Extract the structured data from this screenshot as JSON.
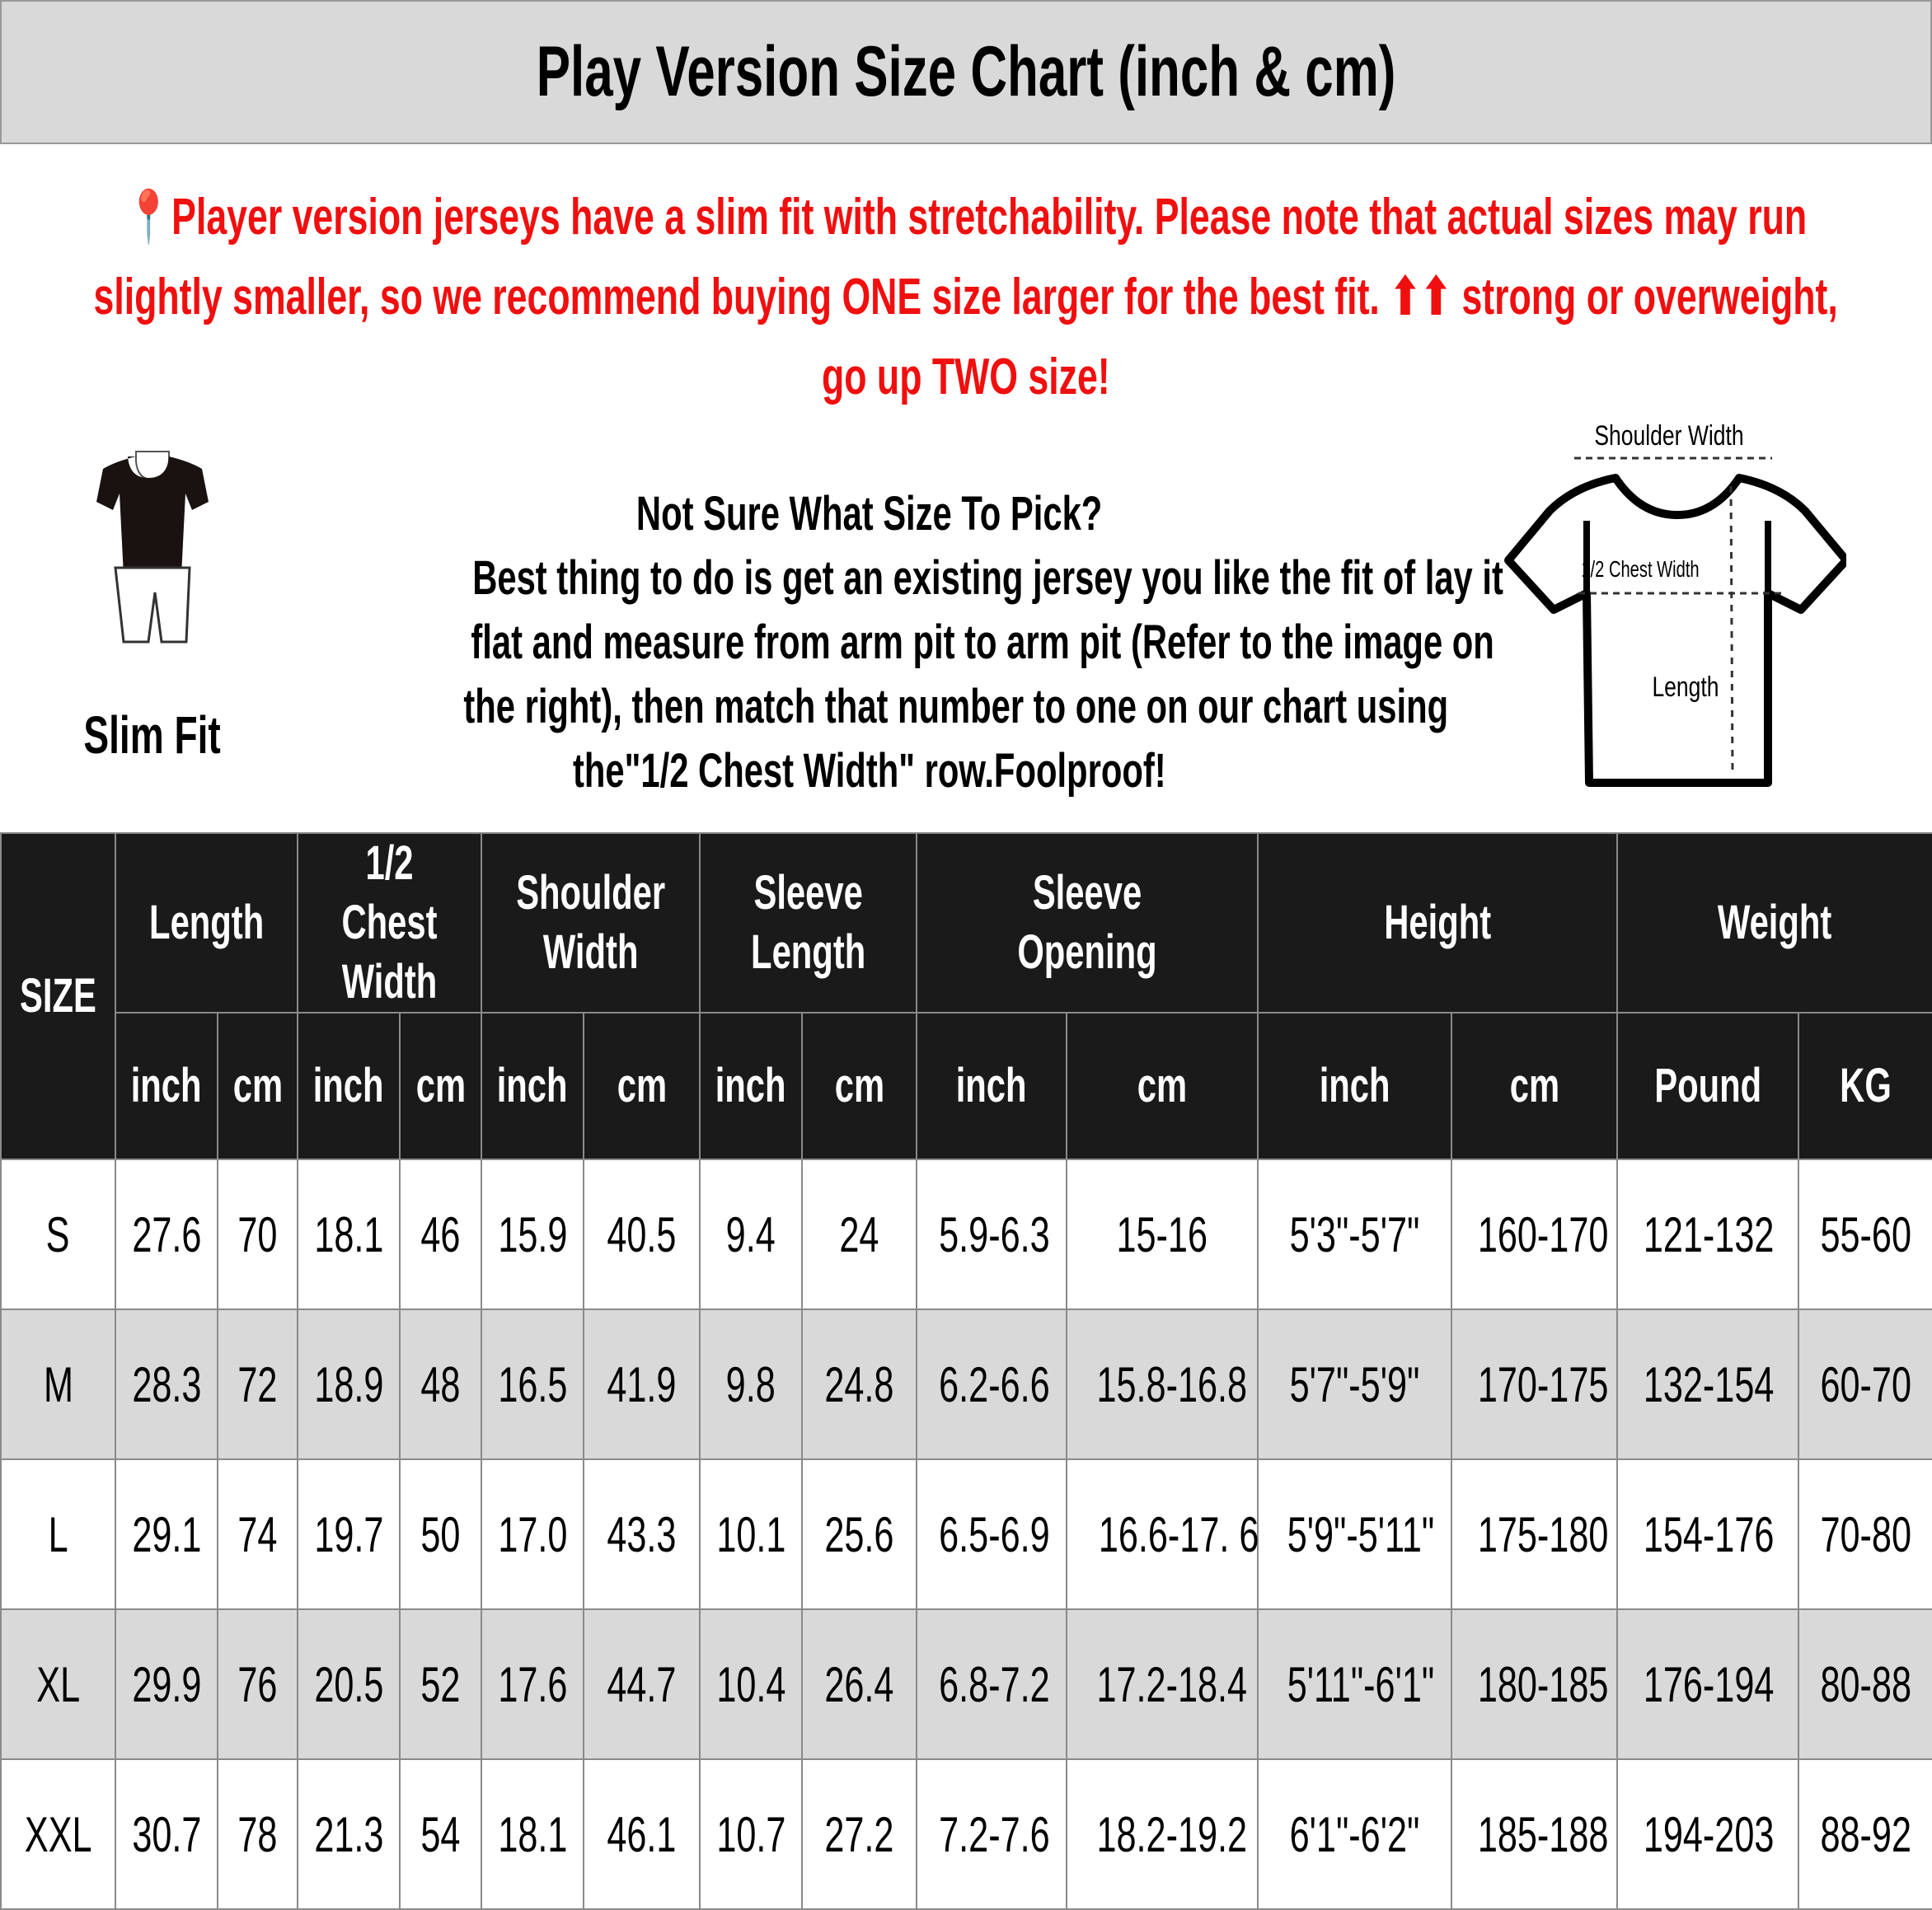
{
  "header": {
    "title": "Play Version Size Chart (inch & cm)"
  },
  "notice": {
    "icon": "pushpin-icon",
    "lines": [
      "📍Player version jerseys have a slim fit with stretchability. Please note that actual sizes may run",
      "slightly smaller, so we recommend buying ONE size larger for the best fit. ⬆⬆ strong or overweight,",
      "go up TWO size!"
    ],
    "color": "#f00f0f"
  },
  "fit": {
    "label": "Slim Fit",
    "icon": "slim-fit-mannequin-icon"
  },
  "advice": {
    "heading": "Not Sure What Size To Pick?",
    "lines": [
      "Best thing to do is get an existing jersey you like the fit of lay it",
      "flat and measure from arm pit to arm pit (Refer to the image on",
      "the right), then match that number to one on our chart using",
      "the\"1/2 Chest Width\" row.Foolproof!"
    ]
  },
  "diagram": {
    "icon": "tshirt-measurement-icon",
    "shoulder_label": "Shoulder Width",
    "chest_label": "1/2 Chest Width",
    "length_label": "Length"
  },
  "table": {
    "size_header": "SIZE",
    "groups": [
      {
        "label": "Length",
        "units": [
          "inch",
          "cm"
        ]
      },
      {
        "label": "1/2 Chest\nWidth",
        "units": [
          "inch",
          "cm"
        ]
      },
      {
        "label": "Shoulder\nWidth",
        "units": [
          "inch",
          "cm"
        ]
      },
      {
        "label": "Sleeve\nLength",
        "units": [
          "inch",
          "cm"
        ]
      },
      {
        "label": "Sleeve Opening",
        "units": [
          "inch",
          "cm"
        ]
      },
      {
        "label": "Height",
        "units": [
          "inch",
          "cm"
        ]
      },
      {
        "label": "Weight",
        "units": [
          "Pound",
          "KG"
        ]
      }
    ],
    "rows": [
      {
        "cells": [
          "S",
          "27.6",
          "70",
          "18.1",
          "46",
          "15.9",
          "40.5",
          "9.4",
          "24",
          "5.9-6.3",
          "15-16",
          "5'3\"-5'7\"",
          "160-170",
          "121-132",
          "55-60"
        ]
      },
      {
        "cells": [
          "M",
          "28.3",
          "72",
          "18.9",
          "48",
          "16.5",
          "41.9",
          "9.8",
          "24.8",
          "6.2-6.6",
          "15.8-16.8",
          "5'7\"-5'9\"",
          "170-175",
          "132-154",
          "60-70"
        ]
      },
      {
        "cells": [
          "L",
          "29.1",
          "74",
          "19.7",
          "50",
          "17.0",
          "43.3",
          "10.1",
          "25.6",
          "6.5-6.9",
          "16.6-17. 6",
          "5'9\"-5'11\"",
          "175-180",
          "154-176",
          "70-80"
        ]
      },
      {
        "cells": [
          "XL",
          "29.9",
          "76",
          "20.5",
          "52",
          "17.6",
          "44.7",
          "10.4",
          "26.4",
          "6.8-7.2",
          "17.2-18.4",
          "5'11\"-6'1\"",
          "180-185",
          "176-194",
          "80-88"
        ]
      },
      {
        "cells": [
          "XXL",
          "30.7",
          "78",
          "21.3",
          "54",
          "18.1",
          "46.1",
          "10.7",
          "27.2",
          "7.2-7.6",
          "18.2-19.2",
          "6'1\"-6'2\"",
          "185-188",
          "194-203",
          "88-92"
        ]
      }
    ]
  }
}
